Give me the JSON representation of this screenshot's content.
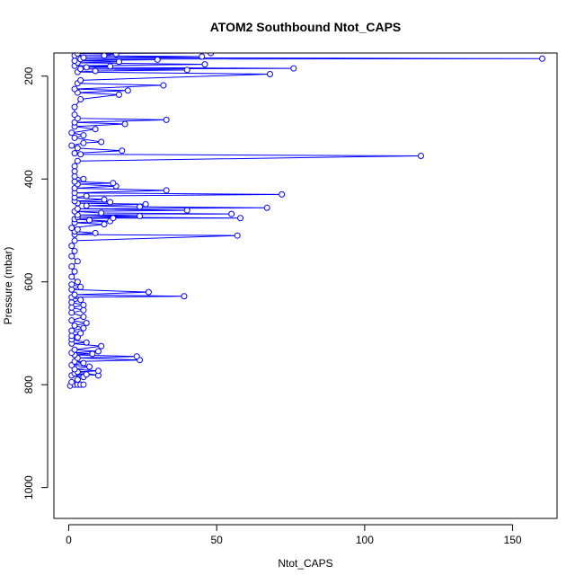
{
  "chart_data": {
    "type": "line",
    "title": "ATOM2 Southbound Ntot_CAPS",
    "xlabel": "Ntot_CAPS",
    "ylabel": "Pressure (mbar)",
    "xlim": [
      -5,
      165
    ],
    "ylim": [
      1060,
      155
    ],
    "y_reversed": true,
    "grid": false,
    "x_ticks": [
      0,
      50,
      100,
      150
    ],
    "y_ticks": [
      200,
      400,
      600,
      800,
      1000
    ],
    "series_color": "#0000ff",
    "series": [
      {
        "points": [
          [
            0.5,
            802
          ],
          [
            2,
            800
          ],
          [
            3,
            800
          ],
          [
            4,
            800
          ],
          [
            5,
            800
          ],
          [
            1,
            795
          ],
          [
            3,
            790
          ],
          [
            5,
            785
          ],
          [
            1,
            782
          ],
          [
            6,
            780
          ],
          [
            2,
            778
          ],
          [
            10,
            782
          ],
          [
            3,
            775
          ],
          [
            10,
            773
          ],
          [
            2,
            770
          ],
          [
            7,
            765
          ],
          [
            1,
            762
          ],
          [
            5,
            758
          ],
          [
            2,
            755
          ],
          [
            24,
            752
          ],
          [
            3,
            748
          ],
          [
            23,
            745
          ],
          [
            2,
            742
          ],
          [
            8,
            740
          ],
          [
            1,
            738
          ],
          [
            10,
            735
          ],
          [
            2,
            732
          ],
          [
            11,
            725
          ],
          [
            1,
            720
          ],
          [
            6,
            718
          ],
          [
            1,
            712
          ],
          [
            3,
            708
          ],
          [
            1,
            705
          ],
          [
            4,
            700
          ],
          [
            1,
            695
          ],
          [
            5,
            690
          ],
          [
            2,
            685
          ],
          [
            6,
            680
          ],
          [
            1,
            675
          ],
          [
            5,
            668
          ],
          [
            1,
            660
          ],
          [
            5,
            655
          ],
          [
            1,
            650
          ],
          [
            5,
            645
          ],
          [
            1,
            640
          ],
          [
            4,
            635
          ],
          [
            1,
            630
          ],
          [
            39,
            628
          ],
          [
            2,
            625
          ],
          [
            27,
            620
          ],
          [
            1,
            615
          ],
          [
            4,
            610
          ],
          [
            1,
            605
          ],
          [
            3,
            600
          ],
          [
            1,
            590
          ],
          [
            2,
            580
          ],
          [
            1,
            570
          ],
          [
            3,
            560
          ],
          [
            1,
            550
          ],
          [
            2,
            540
          ],
          [
            1,
            530
          ],
          [
            2,
            520
          ],
          [
            57,
            510
          ],
          [
            2,
            508
          ],
          [
            9,
            505
          ],
          [
            2,
            502
          ],
          [
            3,
            498
          ],
          [
            1,
            495
          ],
          [
            12,
            488
          ],
          [
            2,
            485
          ],
          [
            14,
            482
          ],
          [
            7,
            480
          ],
          [
            2,
            478
          ],
          [
            15,
            476
          ],
          [
            58,
            476
          ],
          [
            3,
            474
          ],
          [
            24,
            472
          ],
          [
            3,
            470
          ],
          [
            55,
            468
          ],
          [
            11,
            466
          ],
          [
            2,
            463
          ],
          [
            40,
            461
          ],
          [
            3,
            458
          ],
          [
            67,
            456
          ],
          [
            24,
            454
          ],
          [
            6,
            452
          ],
          [
            26,
            449
          ],
          [
            3,
            447
          ],
          [
            14,
            445
          ],
          [
            2,
            443
          ],
          [
            12,
            440
          ],
          [
            2,
            436
          ],
          [
            6,
            433
          ],
          [
            72,
            430
          ],
          [
            2,
            427
          ],
          [
            33,
            422
          ],
          [
            2,
            418
          ],
          [
            16,
            414
          ],
          [
            3,
            410
          ],
          [
            15,
            408
          ],
          [
            2,
            405
          ],
          [
            5,
            400
          ],
          [
            2,
            395
          ],
          [
            2,
            385
          ],
          [
            2,
            375
          ],
          [
            3,
            365
          ],
          [
            119,
            355
          ],
          [
            4,
            352
          ],
          [
            2,
            350
          ],
          [
            18,
            345
          ],
          [
            3,
            340
          ],
          [
            1,
            335
          ],
          [
            5,
            330
          ],
          [
            11,
            328
          ],
          [
            2,
            320
          ],
          [
            5,
            315
          ],
          [
            1,
            310
          ],
          [
            9,
            303
          ],
          [
            2,
            298
          ],
          [
            19,
            293
          ],
          [
            2,
            290
          ],
          [
            33,
            285
          ],
          [
            3,
            282
          ],
          [
            2,
            275
          ],
          [
            2,
            260
          ],
          [
            4,
            245
          ],
          [
            17,
            236
          ],
          [
            3,
            232
          ],
          [
            20,
            228
          ],
          [
            2,
            225
          ],
          [
            32,
            218
          ],
          [
            3,
            214
          ],
          [
            4,
            208
          ],
          [
            68,
            196
          ],
          [
            3,
            192
          ],
          [
            9,
            190
          ],
          [
            40,
            188
          ],
          [
            4,
            186
          ],
          [
            76,
            185
          ],
          [
            6,
            183
          ],
          [
            14,
            181
          ],
          [
            2,
            180
          ],
          [
            46,
            177
          ],
          [
            3,
            174
          ],
          [
            17,
            172
          ],
          [
            2,
            170
          ],
          [
            30,
            168
          ],
          [
            4,
            167
          ],
          [
            160,
            166
          ],
          [
            5,
            164
          ],
          [
            45,
            162
          ],
          [
            2,
            160
          ],
          [
            12,
            160
          ],
          [
            16,
            157
          ],
          [
            3,
            156
          ],
          [
            48,
            155
          ]
        ]
      }
    ]
  }
}
